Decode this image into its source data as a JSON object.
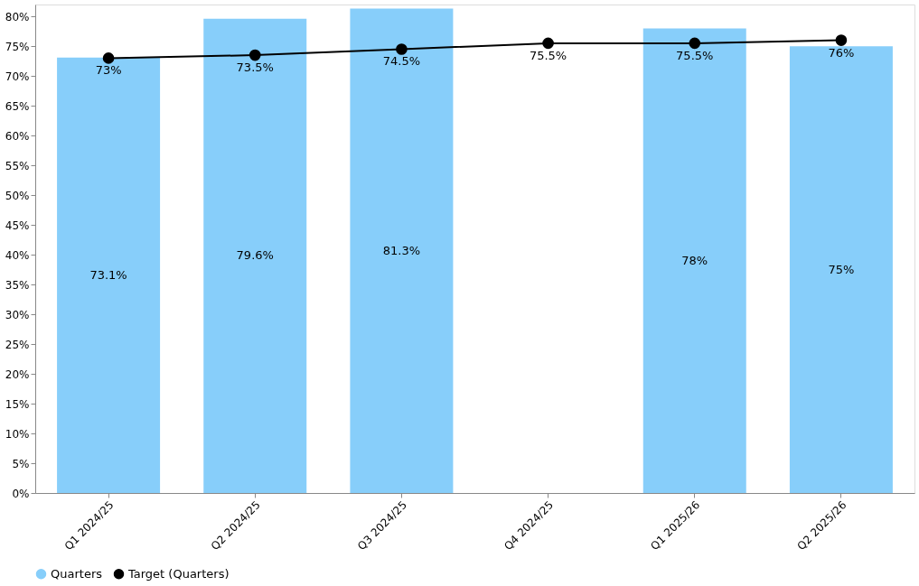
{
  "chart_data": {
    "type": "bar",
    "categories": [
      "Q1 2024/25",
      "Q2 2024/25",
      "Q3 2024/25",
      "Q4 2024/25",
      "Q1 2025/26",
      "Q2 2025/26"
    ],
    "series": [
      {
        "name": "Quarters",
        "color": "#87cefa",
        "values": [
          73.1,
          79.6,
          81.3,
          null,
          78,
          75
        ],
        "value_labels": [
          "73.1%",
          "79.6%",
          "81.3%",
          null,
          "78%",
          "75%"
        ]
      },
      {
        "name": "Target (Quarters)",
        "type": "line",
        "color": "#000000",
        "marker": "circle",
        "values": [
          73,
          73.5,
          74.5,
          75.5,
          75.5,
          76
        ],
        "value_labels": [
          "73%",
          "73.5%",
          "74.5%",
          "75.5%",
          "75.5%",
          "76%"
        ]
      }
    ],
    "ylim": [
      0,
      82
    ],
    "yticks": [
      {
        "value": 0,
        "label": "0%"
      },
      {
        "value": 5,
        "label": "5%"
      },
      {
        "value": 10,
        "label": "10%"
      },
      {
        "value": 15,
        "label": "15%"
      },
      {
        "value": 20,
        "label": "20%"
      },
      {
        "value": 25,
        "label": "25%"
      },
      {
        "value": 30,
        "label": "30%"
      },
      {
        "value": 35,
        "label": "35%"
      },
      {
        "value": 40,
        "label": "40%"
      },
      {
        "value": 45,
        "label": "45%"
      },
      {
        "value": 50,
        "label": "50%"
      },
      {
        "value": 55,
        "label": "55%"
      },
      {
        "value": 60,
        "label": "60%"
      },
      {
        "value": 65,
        "label": "65%"
      },
      {
        "value": 70,
        "label": "70%"
      },
      {
        "value": 75,
        "label": "75%"
      },
      {
        "value": 80,
        "label": "80%"
      }
    ],
    "grid": false,
    "legend": "bottom"
  }
}
